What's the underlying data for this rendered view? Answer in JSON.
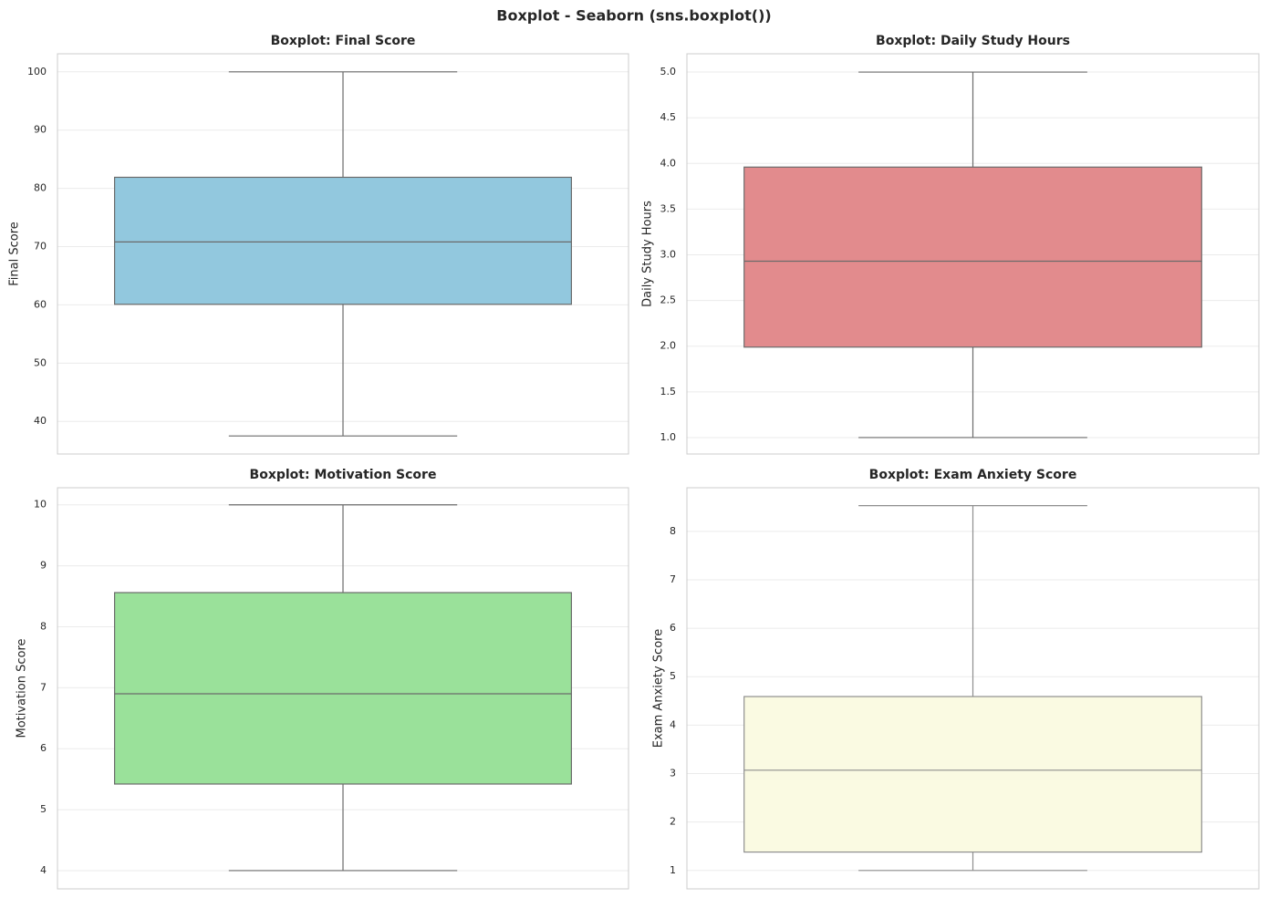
{
  "title": "Boxplot - Seaborn (sns.boxplot())",
  "chart_data": [
    {
      "type": "box",
      "title": "Boxplot: Final Score",
      "ylabel": "Final Score",
      "color": "#92c8de",
      "line_color": "#6b6b6b",
      "stats": {
        "whislo": 37.5,
        "q1": 60.1,
        "med": 70.8,
        "q3": 81.9,
        "whishi": 100
      },
      "ylim": [
        34.4,
        103.1
      ],
      "yticks": [
        40,
        50,
        60,
        70,
        80,
        90,
        100
      ],
      "grid": true
    },
    {
      "type": "box",
      "title": "Boxplot: Daily Study Hours",
      "ylabel": "Daily Study Hours",
      "color": "#e28b8d",
      "line_color": "#6b6b6b",
      "stats": {
        "whislo": 1.0,
        "q1": 1.99,
        "med": 2.93,
        "q3": 3.96,
        "whishi": 5.0
      },
      "ylim": [
        0.82,
        5.2
      ],
      "yticks": [
        {
          "value": 1,
          "label": "1.0"
        },
        1.5,
        {
          "value": 2,
          "label": "2.0"
        },
        2.5,
        {
          "value": 3,
          "label": "3.0"
        },
        3.5,
        {
          "value": 4,
          "label": "4.0"
        },
        4.5,
        {
          "value": 5,
          "label": "5.0"
        }
      ],
      "grid": true
    },
    {
      "type": "box",
      "title": "Boxplot: Motivation Score",
      "ylabel": "Motivation Score",
      "color": "#9ae19a",
      "line_color": "#6b6b6b",
      "stats": {
        "whislo": 4.0,
        "q1": 5.42,
        "med": 6.9,
        "q3": 8.56,
        "whishi": 10.0
      },
      "ylim": [
        3.7,
        10.28
      ],
      "yticks": [
        4,
        5,
        6,
        7,
        8,
        9,
        10
      ],
      "grid": true
    },
    {
      "type": "box",
      "title": "Boxplot: Exam Anxiety Score",
      "ylabel": "Exam Anxiety Score",
      "color": "#fafae2",
      "line_color": "#8e8e8e",
      "stats": {
        "whislo": 1.0,
        "q1": 1.38,
        "med": 3.07,
        "q3": 4.59,
        "whishi": 8.53
      },
      "ylim": [
        0.62,
        8.9
      ],
      "yticks": [
        1,
        2,
        3,
        4,
        5,
        6,
        7,
        8
      ],
      "grid": true
    }
  ]
}
